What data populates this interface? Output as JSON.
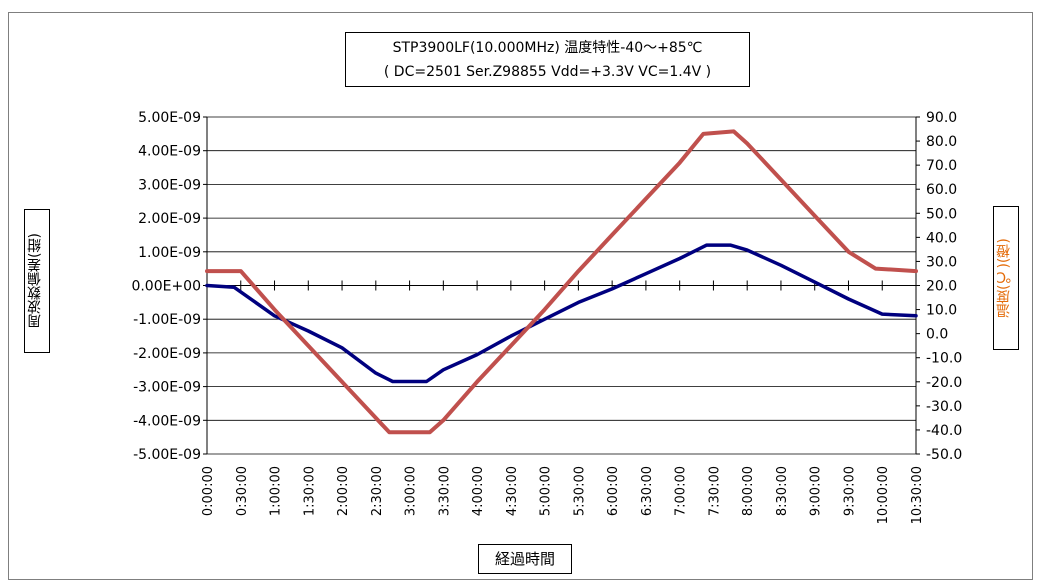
{
  "chart_data": {
    "type": "line",
    "title_line1": "STP3900LF(10.000MHz) 温度特性-40～+85℃",
    "title_line2": "( DC=2501  Ser.Z98855  Vdd=+3.3V VC=1.4V )",
    "xlabel": "経過時間",
    "ylabel_left": "周波数偏差(紺)",
    "ylabel_right": "温度(℃)(橙)",
    "x_ticks": [
      "0:00:00",
      "0:30:00",
      "1:00:00",
      "1:30:00",
      "2:00:00",
      "2:30:00",
      "3:00:00",
      "3:30:00",
      "4:00:00",
      "4:30:00",
      "5:00:00",
      "5:30:00",
      "6:00:00",
      "6:30:00",
      "7:00:00",
      "7:30:00",
      "8:00:00",
      "8:30:00",
      "9:00:00",
      "9:30:00",
      "10:00:00",
      "10:30:00"
    ],
    "y_left_ticks": [
      "5.00E-09",
      "4.00E-09",
      "3.00E-09",
      "2.00E-09",
      "1.00E-09",
      "0.00E+00",
      "-1.00E-09",
      "-2.00E-09",
      "-3.00E-09",
      "-4.00E-09",
      "-5.00E-09"
    ],
    "y_right_ticks": [
      "90.0",
      "80.0",
      "70.0",
      "60.0",
      "50.0",
      "40.0",
      "30.0",
      "20.0",
      "10.0",
      "0.0",
      "-10.0",
      "-20.0",
      "-30.0",
      "-40.0",
      "-50.0"
    ],
    "y_left_range": [
      -5e-09,
      5e-09
    ],
    "y_right_range": [
      -50,
      90
    ],
    "x_range_hours": [
      0,
      10.5
    ],
    "grid": true,
    "series": [
      {
        "name": "周波数偏差",
        "axis": "left",
        "color": "#00007f",
        "points": [
          [
            0,
            0
          ],
          [
            0.4,
            -5e-11
          ],
          [
            1.0,
            -9e-10
          ],
          [
            1.5,
            -1.35e-09
          ],
          [
            2.0,
            -1.85e-09
          ],
          [
            2.5,
            -2.6e-09
          ],
          [
            2.75,
            -2.85e-09
          ],
          [
            3.25,
            -2.85e-09
          ],
          [
            3.5,
            -2.5e-09
          ],
          [
            4.0,
            -2.05e-09
          ],
          [
            4.5,
            -1.5e-09
          ],
          [
            5.0,
            -1e-09
          ],
          [
            5.5,
            -5e-10
          ],
          [
            6.0,
            -1e-10
          ],
          [
            6.5,
            3.5e-10
          ],
          [
            7.0,
            8e-10
          ],
          [
            7.4,
            1.2e-09
          ],
          [
            7.75,
            1.2e-09
          ],
          [
            8.0,
            1.05e-09
          ],
          [
            8.5,
            6e-10
          ],
          [
            9.0,
            1e-10
          ],
          [
            9.5,
            -4e-10
          ],
          [
            10.0,
            -8.5e-10
          ],
          [
            10.5,
            -9e-10
          ]
        ]
      },
      {
        "name": "温度",
        "axis": "right",
        "color": "#c0504d",
        "points": [
          [
            0,
            26
          ],
          [
            0.5,
            26
          ],
          [
            1.0,
            10
          ],
          [
            1.5,
            -5
          ],
          [
            2.0,
            -20
          ],
          [
            2.5,
            -35
          ],
          [
            2.7,
            -41
          ],
          [
            3.3,
            -41
          ],
          [
            3.5,
            -36
          ],
          [
            4.0,
            -20
          ],
          [
            4.5,
            -5
          ],
          [
            5.0,
            10
          ],
          [
            5.5,
            26
          ],
          [
            6.0,
            41
          ],
          [
            6.5,
            56
          ],
          [
            7.0,
            71
          ],
          [
            7.35,
            83
          ],
          [
            7.8,
            84
          ],
          [
            8.0,
            79
          ],
          [
            8.5,
            64
          ],
          [
            9.0,
            49
          ],
          [
            9.5,
            34
          ],
          [
            9.9,
            27
          ],
          [
            10.5,
            26
          ]
        ]
      }
    ]
  }
}
